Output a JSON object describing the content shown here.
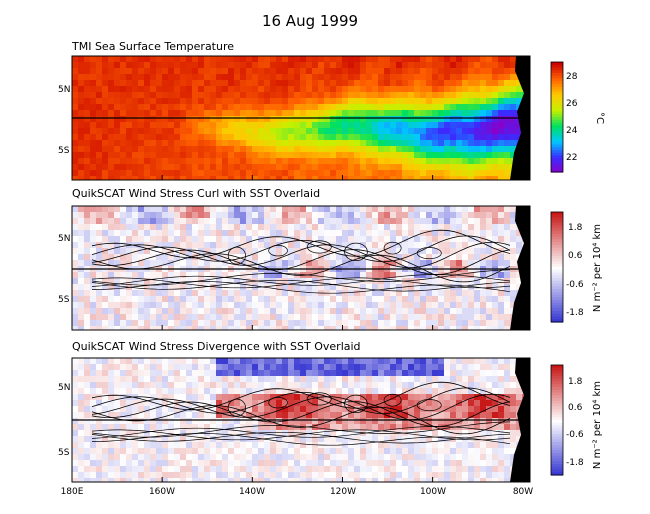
{
  "page_title": "16  Aug 1999",
  "colors": {
    "sst_scale": [
      "#8a00c8",
      "#3a2cff",
      "#00c8ff",
      "#00e060",
      "#c8f000",
      "#ffc800",
      "#ff6000",
      "#c80000"
    ],
    "anomaly_scale": [
      "#3030d0",
      "#ffffff",
      "#c81818"
    ],
    "land": "#000000",
    "contour": "#000000"
  },
  "chart_data": [
    {
      "type": "heatmap",
      "title": "TMI Sea Surface Temperature",
      "y_ticks": [
        "5N",
        "5S"
      ],
      "colorbar": {
        "ticks": [
          "28",
          "26",
          "24",
          "22"
        ],
        "unit": "°C",
        "range": [
          21,
          29.5
        ]
      },
      "equator_line": true
    },
    {
      "type": "heatmap",
      "title": "QuikSCAT Wind Stress Curl with SST Overlaid",
      "y_ticks": [
        "5N",
        "5S"
      ],
      "colorbar": {
        "ticks": [
          "1.8",
          "0.6",
          "-0.6",
          "-1.8"
        ],
        "unit": "N m⁻² per 10⁴ km",
        "range": [
          -2.2,
          2.2
        ]
      },
      "contours": "SST",
      "equator_line": true
    },
    {
      "type": "heatmap",
      "title": "QuikSCAT Wind Stress Divergence with SST Overlaid",
      "y_ticks": [
        "5N",
        "5S"
      ],
      "x_ticks": [
        "180E",
        "160W",
        "140W",
        "120W",
        "100W",
        "80W"
      ],
      "colorbar": {
        "ticks": [
          "1.8",
          "0.6",
          "-0.6",
          "-1.8"
        ],
        "unit": "N m⁻² per 10⁴ km",
        "range": [
          -2.2,
          2.2
        ]
      },
      "contours": "SST",
      "equator_line": true
    }
  ]
}
